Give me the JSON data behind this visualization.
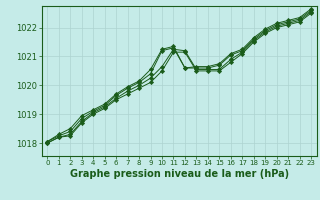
{
  "background_color": "#c5ebe8",
  "grid_color": "#aed4d1",
  "line_color": "#1a5c1a",
  "marker_color": "#1a5c1a",
  "xlabel": "Graphe pression niveau de la mer (hPa)",
  "xlabel_fontsize": 7,
  "ytick_fontsize": 6,
  "xtick_fontsize": 5,
  "yticks": [
    1018,
    1019,
    1020,
    1021,
    1022
  ],
  "xticks": [
    0,
    1,
    2,
    3,
    4,
    5,
    6,
    7,
    8,
    9,
    10,
    11,
    12,
    13,
    14,
    15,
    16,
    17,
    18,
    19,
    20,
    21,
    22,
    23
  ],
  "ylim": [
    1017.55,
    1022.75
  ],
  "xlim": [
    -0.5,
    23.5
  ],
  "series": [
    [
      1018.0,
      1018.2,
      1018.25,
      1018.7,
      1019.0,
      1019.2,
      1019.5,
      1019.7,
      1019.9,
      1020.1,
      1020.5,
      1021.15,
      1021.15,
      1020.5,
      1020.5,
      1020.5,
      1020.8,
      1021.1,
      1021.5,
      1021.8,
      1022.0,
      1022.1,
      1022.2,
      1022.5
    ],
    [
      1018.0,
      1018.2,
      1018.3,
      1018.75,
      1019.05,
      1019.25,
      1019.55,
      1019.8,
      1020.0,
      1020.25,
      1020.65,
      1021.25,
      1021.2,
      1020.55,
      1020.55,
      1020.55,
      1020.9,
      1021.15,
      1021.55,
      1021.85,
      1022.05,
      1022.15,
      1022.25,
      1022.55
    ],
    [
      1018.05,
      1018.25,
      1018.4,
      1018.85,
      1019.1,
      1019.3,
      1019.65,
      1019.9,
      1020.1,
      1020.4,
      1021.2,
      1021.3,
      1020.6,
      1020.6,
      1020.6,
      1020.7,
      1021.05,
      1021.2,
      1021.6,
      1021.9,
      1022.1,
      1022.2,
      1022.3,
      1022.6
    ],
    [
      1018.05,
      1018.3,
      1018.5,
      1018.95,
      1019.15,
      1019.35,
      1019.7,
      1019.95,
      1020.15,
      1020.55,
      1021.25,
      1021.35,
      1020.6,
      1020.65,
      1020.65,
      1020.75,
      1021.1,
      1021.25,
      1021.65,
      1021.95,
      1022.15,
      1022.25,
      1022.35,
      1022.65
    ]
  ]
}
